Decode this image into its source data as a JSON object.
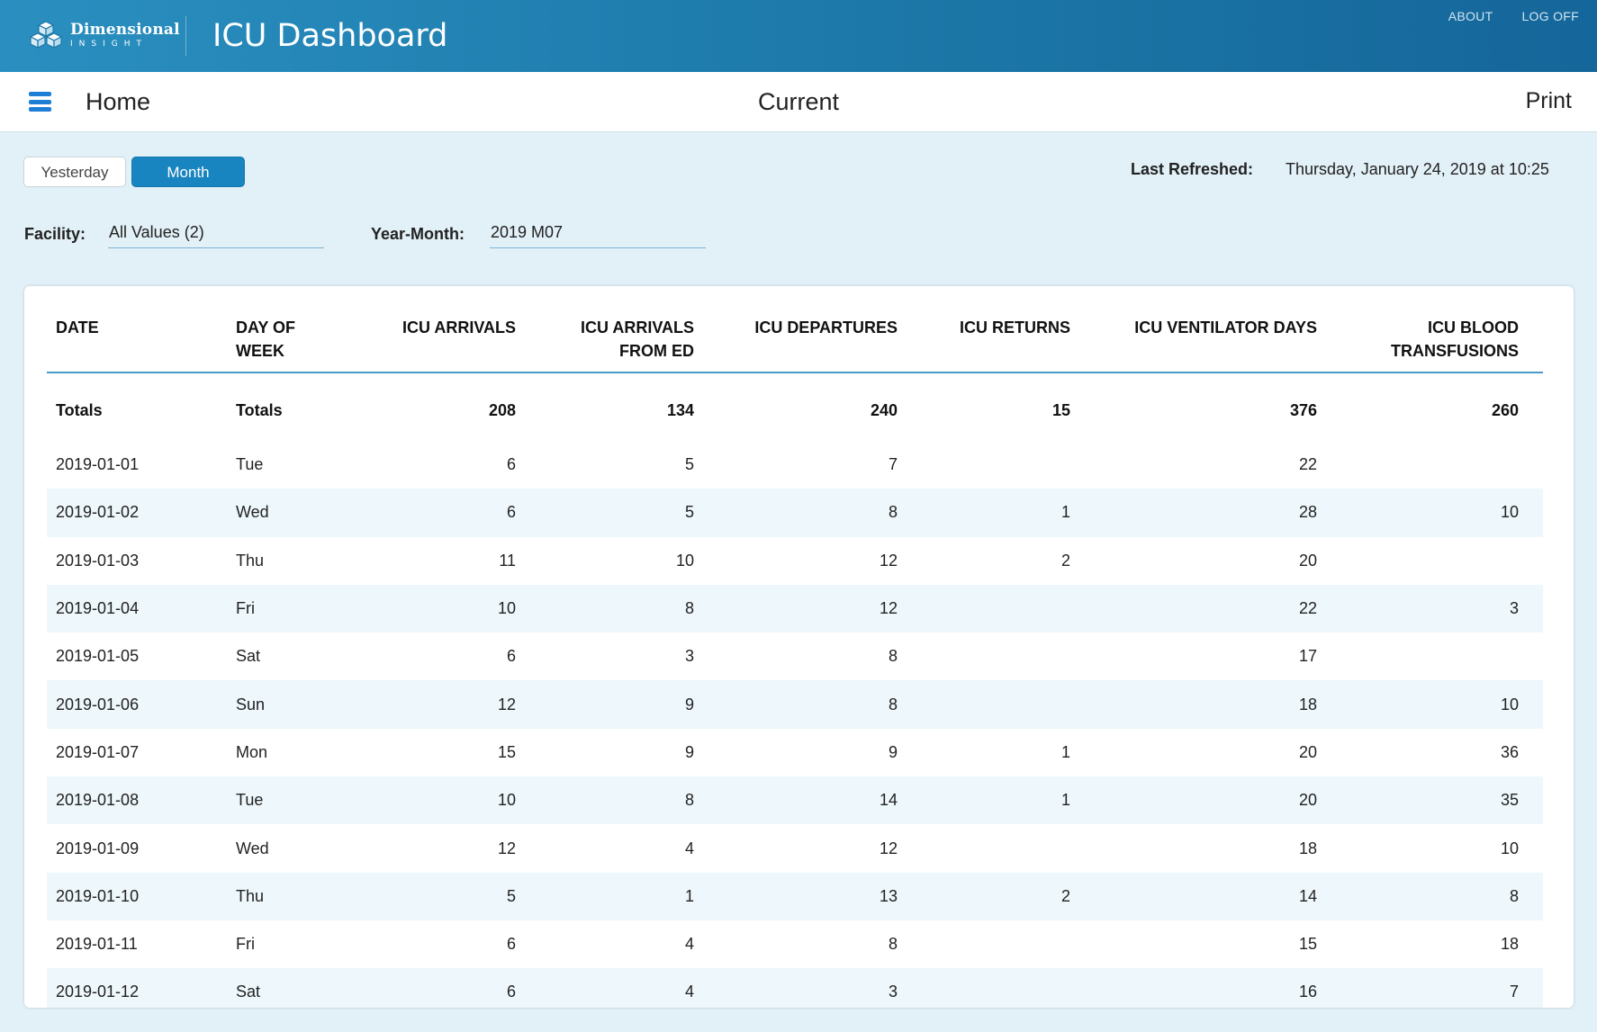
{
  "app": {
    "logo_line1": "Dimensional",
    "logo_line2": "INSIGHT",
    "title": "ICU Dashboard",
    "links": {
      "about": "ABOUT",
      "logoff": "LOG OFF"
    }
  },
  "nav": {
    "home": "Home",
    "current": "Current",
    "print": "Print"
  },
  "period_buttons": {
    "yesterday": "Yesterday",
    "month": "Month",
    "selected": "Month"
  },
  "refresh": {
    "label": "Last Refreshed:",
    "value": "Thursday, January 24, 2019 at 10:25"
  },
  "filters": {
    "facility_label": "Facility:",
    "facility_value": "All Values (2)",
    "yearmonth_label": "Year-Month:",
    "yearmonth_value": "2019 M07"
  },
  "table": {
    "headers": [
      "DATE",
      "DAY OF WEEK",
      "ICU ARRIVALS",
      "ICU ARRIVALS FROM ED",
      "ICU DEPARTURES",
      "ICU RETURNS",
      "ICU VENTILATOR DAYS",
      "ICU BLOOD TRANSFUSIONS"
    ],
    "totals": [
      "Totals",
      "Totals",
      "208",
      "134",
      "240",
      "15",
      "376",
      "260"
    ],
    "rows": [
      [
        "2019-01-01",
        "Tue",
        "6",
        "5",
        "7",
        "",
        "22",
        ""
      ],
      [
        "2019-01-02",
        "Wed",
        "6",
        "5",
        "8",
        "1",
        "28",
        "10"
      ],
      [
        "2019-01-03",
        "Thu",
        "11",
        "10",
        "12",
        "2",
        "20",
        ""
      ],
      [
        "2019-01-04",
        "Fri",
        "10",
        "8",
        "12",
        "",
        "22",
        "3"
      ],
      [
        "2019-01-05",
        "Sat",
        "6",
        "3",
        "8",
        "",
        "17",
        ""
      ],
      [
        "2019-01-06",
        "Sun",
        "12",
        "9",
        "8",
        "",
        "18",
        "10"
      ],
      [
        "2019-01-07",
        "Mon",
        "15",
        "9",
        "9",
        "1",
        "20",
        "36"
      ],
      [
        "2019-01-08",
        "Tue",
        "10",
        "8",
        "14",
        "1",
        "20",
        "35"
      ],
      [
        "2019-01-09",
        "Wed",
        "12",
        "4",
        "12",
        "",
        "18",
        "10"
      ],
      [
        "2019-01-10",
        "Thu",
        "5",
        "1",
        "13",
        "2",
        "14",
        "8"
      ],
      [
        "2019-01-11",
        "Fri",
        "6",
        "4",
        "8",
        "",
        "15",
        "18"
      ],
      [
        "2019-01-12",
        "Sat",
        "6",
        "4",
        "3",
        "",
        "16",
        "7"
      ]
    ]
  },
  "colors": {
    "header_gradient_start": "#2a8fc0",
    "header_gradient_end": "#15669a",
    "accent": "#1884c0",
    "page_bg": "#e2f0f7",
    "alt_row": "#eef7fb"
  },
  "icons": {
    "logo": "cube-logo-icon",
    "menu": "hamburger-menu-icon"
  }
}
